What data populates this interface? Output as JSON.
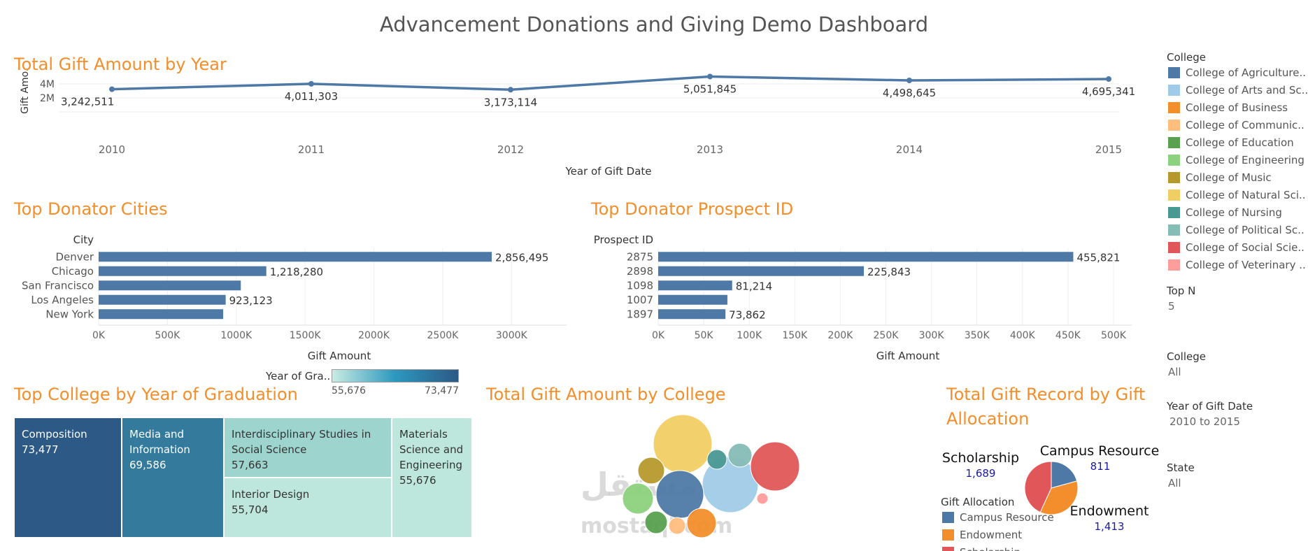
{
  "title": "Advancement Donations and Giving Demo Dashboard",
  "line_section": {
    "title": "Total Gift Amount by Year",
    "ylabel": "Gift Amo..",
    "xlabel": "Year of Gift Date"
  },
  "cities_section": {
    "title": "Top Donator Cities",
    "axis_header": "City",
    "xlabel": "Gift Amount"
  },
  "prospect_section": {
    "title": "Top Donator Prospect ID",
    "axis_header": "Prospect ID",
    "xlabel": "Gift Amount"
  },
  "treemap_section": {
    "title": "Top College by Year of Graduation",
    "color_legend_label": "Year of Gra..",
    "color_min": "55,676",
    "color_max": "73,477"
  },
  "bubble_section": {
    "title": "Total Gift Amount by College"
  },
  "pie_section": {
    "title_line1": "Total Gift Record by Gift",
    "title_line2": "Allocation",
    "legend_title": "Gift Allocation",
    "legend_items": [
      {
        "label": "Campus Resource",
        "color": "#4e79a7"
      },
      {
        "label": "Endowment",
        "color": "#f28e2b"
      },
      {
        "label": "Scholarship",
        "color": "#e15759"
      }
    ]
  },
  "sidebar": {
    "college_title": "College",
    "colleges": [
      {
        "label": "College of Agriculture..",
        "color": "#4e79a7"
      },
      {
        "label": "College of Arts and Sc..",
        "color": "#a0cbe8"
      },
      {
        "label": "College of Business",
        "color": "#f28e2b"
      },
      {
        "label": "College of Communic..",
        "color": "#ffbe7d"
      },
      {
        "label": "College of Education",
        "color": "#59a14f"
      },
      {
        "label": "College of Engineering",
        "color": "#8cd17d"
      },
      {
        "label": "College of Music",
        "color": "#b6992d"
      },
      {
        "label": "College of Natural Sci..",
        "color": "#f1ce63"
      },
      {
        "label": "College of Nursing",
        "color": "#499894"
      },
      {
        "label": "College of Political Sc..",
        "color": "#86bcb6"
      },
      {
        "label": "College of Social Scie..",
        "color": "#e15759"
      },
      {
        "label": "College of Veterinary ..",
        "color": "#ff9d9a"
      }
    ],
    "topn_label": "Top N",
    "topn_value": "5",
    "filter_college_label": "College",
    "filter_college_value": "All",
    "filter_year_label": "Year of Gift Date",
    "filter_year_value": "2010 to 2015",
    "filter_state_label": "State",
    "filter_state_value": "All"
  },
  "watermark": {
    "arabic": "مستقل",
    "latin": "mostaql.com"
  },
  "chart_data": [
    {
      "type": "line",
      "title": "Total Gift Amount by Year",
      "xlabel": "Year of Gift Date",
      "ylabel": "Gift Amo..",
      "x": [
        "2010",
        "2011",
        "2012",
        "2013",
        "2014",
        "2015"
      ],
      "values": [
        3242511,
        4011303,
        3173114,
        5051845,
        4498645,
        4695341
      ],
      "value_labels": [
        "3,242,511",
        "4,011,303",
        "3,173,114",
        "5,051,845",
        "4,498,645",
        "4,695,341"
      ],
      "ylim": [
        0,
        6000000
      ],
      "yticks": [
        {
          "v": 2000000,
          "label": "2M"
        },
        {
          "v": 4000000,
          "label": "4M"
        }
      ],
      "color": "#4e79a7"
    },
    {
      "type": "bar",
      "orientation": "horizontal",
      "title": "Top Donator Cities",
      "xlabel": "Gift Amount",
      "categories": [
        "Denver",
        "Chicago",
        "San Francisco",
        "Los Angeles",
        "New York"
      ],
      "values": [
        2856495,
        1218280,
        1033000,
        923123,
        905000
      ],
      "value_labels": [
        "2,856,495",
        "1,218,280",
        "",
        "923,123",
        ""
      ],
      "xlim": [
        0,
        3400000
      ],
      "xticks": [
        {
          "v": 0,
          "label": "0K"
        },
        {
          "v": 500000,
          "label": "500K"
        },
        {
          "v": 1000000,
          "label": "1000K"
        },
        {
          "v": 1500000,
          "label": "1500K"
        },
        {
          "v": 2000000,
          "label": "2000K"
        },
        {
          "v": 2500000,
          "label": "2500K"
        },
        {
          "v": 3000000,
          "label": "3000K"
        }
      ],
      "color": "#4e79a7"
    },
    {
      "type": "bar",
      "orientation": "horizontal",
      "title": "Top Donator Prospect ID",
      "xlabel": "Gift Amount",
      "categories": [
        "2875",
        "2898",
        "1098",
        "1007",
        "1897"
      ],
      "values": [
        455821,
        225843,
        81214,
        76000,
        73862
      ],
      "value_labels": [
        "455,821",
        "225,843",
        "81,214",
        "",
        "73,862"
      ],
      "xlim": [
        0,
        520000
      ],
      "xticks": [
        {
          "v": 0,
          "label": "0K"
        },
        {
          "v": 50000,
          "label": "50K"
        },
        {
          "v": 100000,
          "label": "100K"
        },
        {
          "v": 150000,
          "label": "150K"
        },
        {
          "v": 200000,
          "label": "200K"
        },
        {
          "v": 250000,
          "label": "250K"
        },
        {
          "v": 300000,
          "label": "300K"
        },
        {
          "v": 350000,
          "label": "350K"
        },
        {
          "v": 400000,
          "label": "400K"
        },
        {
          "v": 450000,
          "label": "450K"
        },
        {
          "v": 500000,
          "label": "500K"
        }
      ],
      "color": "#4e79a7"
    },
    {
      "type": "treemap",
      "title": "Top College by Year of Graduation",
      "items": [
        {
          "label": "Composition",
          "value": "73,477",
          "color": "#2c5985",
          "text_color": "#ffffff"
        },
        {
          "label": "Media and Information",
          "value": "69,586",
          "color": "#337a9c",
          "text_color": "#ffffff"
        },
        {
          "label": "Interdisciplinary Studies in Social Science",
          "value": "57,663",
          "color": "#9ed4ce",
          "text_color": "#333333"
        },
        {
          "label": "Interior Design",
          "value": "55,704",
          "color": "#bde6dc",
          "text_color": "#333333"
        },
        {
          "label": "Materials Science and Engineering",
          "value": "55,676",
          "color": "#bde6dc",
          "text_color": "#333333"
        }
      ]
    },
    {
      "type": "bubble",
      "title": "Total Gift Amount by College",
      "bubbles": [
        {
          "college": "College of Natural Sci..",
          "color": "#f1ce63"
        },
        {
          "college": "College of Arts and Sc..",
          "color": "#a0cbe8"
        },
        {
          "college": "College of Social Scie..",
          "color": "#e15759"
        },
        {
          "college": "College of Agriculture..",
          "color": "#4e79a7"
        },
        {
          "college": "College of Political Sc..",
          "color": "#86bcb6"
        },
        {
          "college": "College of Nursing",
          "color": "#499894"
        },
        {
          "college": "College of Music",
          "color": "#b6992d"
        },
        {
          "college": "College of Engineering",
          "color": "#8cd17d"
        },
        {
          "college": "College of Education",
          "color": "#59a14f"
        },
        {
          "college": "College of Business",
          "color": "#f28e2b"
        },
        {
          "college": "College of Communic..",
          "color": "#ffbe7d"
        },
        {
          "college": "College of Veterinary ..",
          "color": "#ff9d9a"
        }
      ]
    },
    {
      "type": "pie",
      "title": "Total Gift Record by Gift Allocation",
      "slices": [
        {
          "label": "Campus Resource",
          "value": 811,
          "value_label": "811",
          "color": "#4e79a7"
        },
        {
          "label": "Endowment",
          "value": 1413,
          "value_label": "1,413",
          "color": "#f28e2b"
        },
        {
          "label": "Scholarship",
          "value": 1689,
          "value_label": "1,689",
          "color": "#e15759"
        }
      ]
    }
  ]
}
